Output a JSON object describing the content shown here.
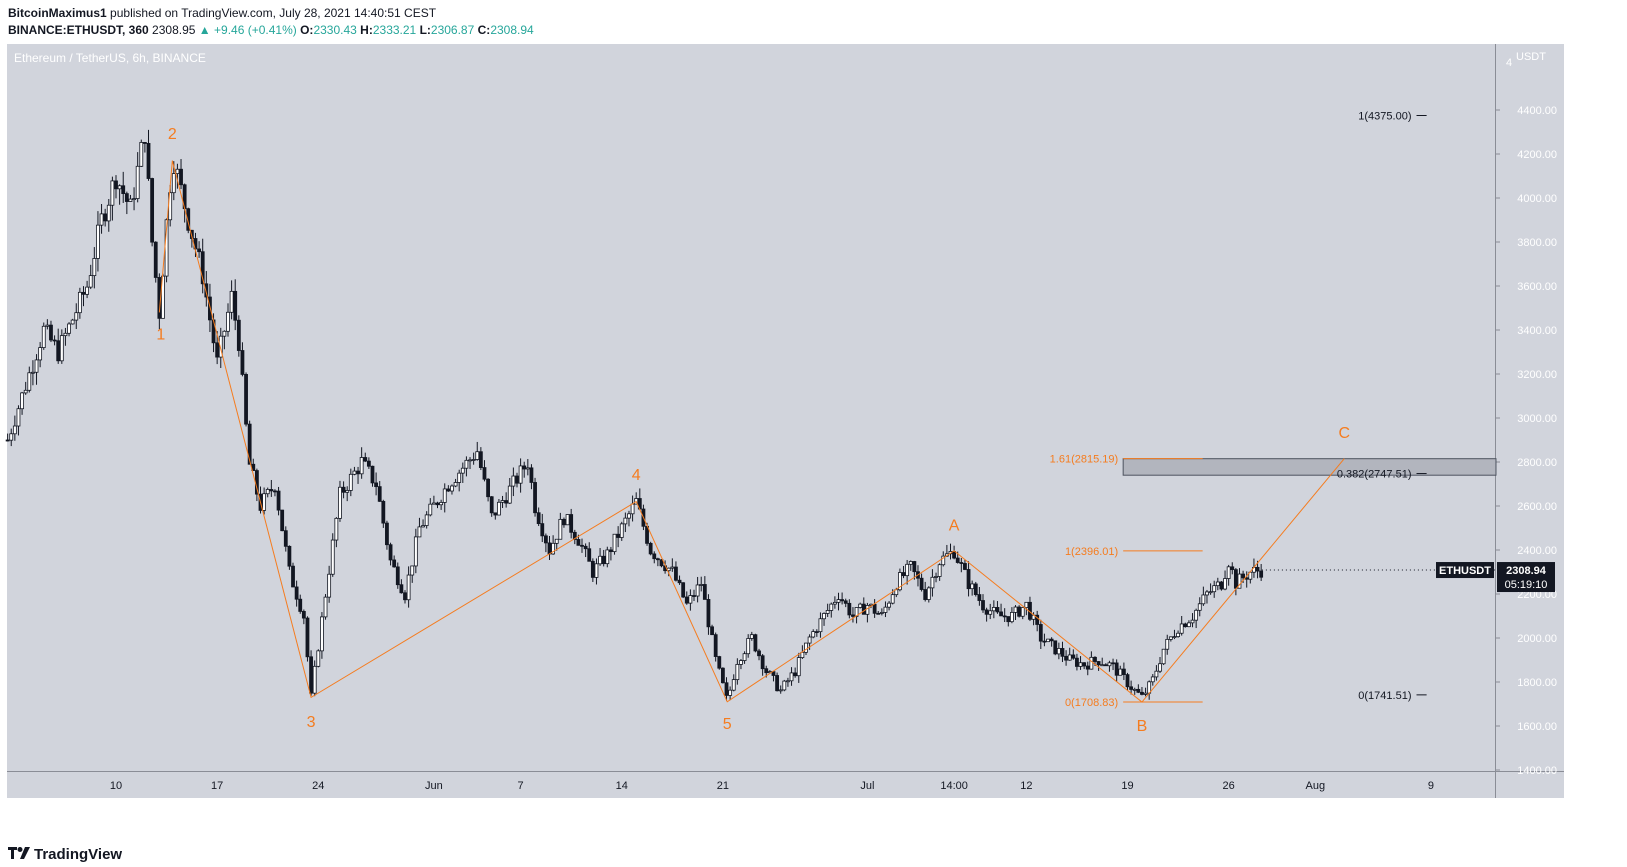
{
  "header": {
    "author": "BitcoinMaximus1",
    "published_text": "published on TradingView.com, July 28, 2021 14:40:51 CEST",
    "symbol": "BINANCE:ETHUSDT, 360",
    "last_price": "2308.95",
    "change": "+9.46 (+0.41%)",
    "open_label": "O:",
    "open": "2330.43",
    "high_label": "H:",
    "high": "2333.21",
    "low_label": "L:",
    "low": "2306.87",
    "close_label": "C:",
    "close": "2308.94"
  },
  "footer": {
    "brand": "TradingView"
  },
  "colors": {
    "background": "#d1d4dc",
    "candle": "#131722",
    "orange": "#f57c1f",
    "text": "#131722",
    "price_tag": "#131722"
  },
  "chart_data": {
    "type": "candlestick",
    "title": "Ethereum / TetherUS, 6h, BINANCE",
    "ylabel": "USDT",
    "ylim": [
      1400,
      4560
    ],
    "y_ticks": [
      1400,
      1600,
      1800,
      2000,
      2200,
      2400,
      2600,
      2800,
      3000,
      3200,
      3400,
      3600,
      3800,
      4000,
      4200,
      4400
    ],
    "y_tick_labels": [
      "1400.00",
      "1600.00",
      "1800.00",
      "2000.00",
      "2200.00",
      "2400.00",
      "2600.00",
      "2800.00",
      "3000.00",
      "3200.00",
      "3400.00",
      "3600.00",
      "3800.00",
      "4000.00",
      "4200.00",
      "4400.00"
    ],
    "y_top_label": "4",
    "x_labels": [
      {
        "day": 10,
        "label": "10"
      },
      {
        "day": 17,
        "label": "17"
      },
      {
        "day": 24,
        "label": "24"
      },
      {
        "day": 32,
        "label": "Jun"
      },
      {
        "day": 38,
        "label": "7"
      },
      {
        "day": 45,
        "label": "14"
      },
      {
        "day": 52,
        "label": "21"
      },
      {
        "day": 62,
        "label": "Jul"
      },
      {
        "day": 68,
        "label": "14:00"
      },
      {
        "day": 73,
        "label": "12"
      },
      {
        "day": 80,
        "label": "19"
      },
      {
        "day": 87,
        "label": "26"
      },
      {
        "day": 93,
        "label": "Aug"
      },
      {
        "day": 101,
        "label": "9"
      }
    ],
    "series": [
      {
        "name": "ETHUSDT",
        "keypoints": [
          {
            "day": 2.5,
            "price": 2900
          },
          {
            "day": 4,
            "price": 3200
          },
          {
            "day": 5,
            "price": 3400
          },
          {
            "day": 6,
            "price": 3300
          },
          {
            "day": 7,
            "price": 3450
          },
          {
            "day": 8,
            "price": 3600
          },
          {
            "day": 9,
            "price": 3900
          },
          {
            "day": 10,
            "price": 4100
          },
          {
            "day": 11,
            "price": 3950
          },
          {
            "day": 12,
            "price": 4300
          },
          {
            "day": 12.5,
            "price": 3800
          },
          {
            "day": 13,
            "price": 3480
          },
          {
            "day": 13.7,
            "price": 4050
          },
          {
            "day": 14,
            "price": 4170
          },
          {
            "day": 15,
            "price": 3900
          },
          {
            "day": 16,
            "price": 3650
          },
          {
            "day": 17,
            "price": 3250
          },
          {
            "day": 18,
            "price": 3550
          },
          {
            "day": 18.5,
            "price": 3350
          },
          {
            "day": 19.2,
            "price": 2800
          },
          {
            "day": 20,
            "price": 2600
          },
          {
            "day": 21,
            "price": 2700
          },
          {
            "day": 22,
            "price": 2300
          },
          {
            "day": 23,
            "price": 2100
          },
          {
            "day": 23.5,
            "price": 1730
          },
          {
            "day": 24.5,
            "price": 2200
          },
          {
            "day": 25.5,
            "price": 2650
          },
          {
            "day": 27,
            "price": 2800
          },
          {
            "day": 28,
            "price": 2700
          },
          {
            "day": 29,
            "price": 2350
          },
          {
            "day": 30,
            "price": 2200
          },
          {
            "day": 31,
            "price": 2500
          },
          {
            "day": 33,
            "price": 2700
          },
          {
            "day": 35,
            "price": 2850
          },
          {
            "day": 36,
            "price": 2550
          },
          {
            "day": 37.5,
            "price": 2700
          },
          {
            "day": 38.5,
            "price": 2800
          },
          {
            "day": 39,
            "price": 2600
          },
          {
            "day": 40,
            "price": 2400
          },
          {
            "day": 41,
            "price": 2550
          },
          {
            "day": 42,
            "price": 2450
          },
          {
            "day": 43,
            "price": 2300
          },
          {
            "day": 44,
            "price": 2380
          },
          {
            "day": 45,
            "price": 2500
          },
          {
            "day": 46,
            "price": 2620
          },
          {
            "day": 47,
            "price": 2400
          },
          {
            "day": 48.5,
            "price": 2300
          },
          {
            "day": 49.5,
            "price": 2150
          },
          {
            "day": 50.5,
            "price": 2250
          },
          {
            "day": 51.5,
            "price": 1900
          },
          {
            "day": 52.3,
            "price": 1710
          },
          {
            "day": 53,
            "price": 1900
          },
          {
            "day": 54,
            "price": 2000
          },
          {
            "day": 55,
            "price": 1850
          },
          {
            "day": 56,
            "price": 1760
          },
          {
            "day": 57,
            "price": 1850
          },
          {
            "day": 58,
            "price": 2000
          },
          {
            "day": 59,
            "price": 2100
          },
          {
            "day": 60,
            "price": 2200
          },
          {
            "day": 61,
            "price": 2100
          },
          {
            "day": 62,
            "price": 2150
          },
          {
            "day": 63,
            "price": 2100
          },
          {
            "day": 64,
            "price": 2250
          },
          {
            "day": 65,
            "price": 2320
          },
          {
            "day": 66,
            "price": 2200
          },
          {
            "day": 67,
            "price": 2350
          },
          {
            "day": 68,
            "price": 2396
          },
          {
            "day": 69,
            "price": 2250
          },
          {
            "day": 70,
            "price": 2150
          },
          {
            "day": 71,
            "price": 2100
          },
          {
            "day": 72,
            "price": 2100
          },
          {
            "day": 73,
            "price": 2150
          },
          {
            "day": 74,
            "price": 2000
          },
          {
            "day": 75,
            "price": 1950
          },
          {
            "day": 76,
            "price": 1900
          },
          {
            "day": 77,
            "price": 1880
          },
          {
            "day": 78,
            "price": 1900
          },
          {
            "day": 79,
            "price": 1870
          },
          {
            "day": 80.5,
            "price": 1760
          },
          {
            "day": 81,
            "price": 1730
          },
          {
            "day": 81.7,
            "price": 1800
          },
          {
            "day": 82.5,
            "price": 1950
          },
          {
            "day": 83.5,
            "price": 2050
          },
          {
            "day": 84.5,
            "price": 2100
          },
          {
            "day": 85.5,
            "price": 2200
          },
          {
            "day": 86.5,
            "price": 2250
          },
          {
            "day": 87,
            "price": 2350
          },
          {
            "day": 87.5,
            "price": 2250
          },
          {
            "day": 88.5,
            "price": 2300
          },
          {
            "day": 89.3,
            "price": 2309
          }
        ]
      }
    ],
    "wave_labels": [
      {
        "text": "1",
        "day": 13.1,
        "price": 3420,
        "pos": "below"
      },
      {
        "text": "2",
        "day": 13.9,
        "price": 4250,
        "pos": "above"
      },
      {
        "text": "3",
        "day": 23.5,
        "price": 1660,
        "pos": "below"
      },
      {
        "text": "4",
        "day": 46.0,
        "price": 2700,
        "pos": "above"
      },
      {
        "text": "5",
        "day": 52.3,
        "price": 1650,
        "pos": "below"
      },
      {
        "text": "A",
        "day": 68.0,
        "price": 2470,
        "pos": "above"
      },
      {
        "text": "B",
        "day": 81.0,
        "price": 1640,
        "pos": "below"
      },
      {
        "text": "C",
        "day": 95.0,
        "price": 2890,
        "pos": "above"
      }
    ],
    "wave_path": [
      {
        "day": 13.0,
        "price": 3480
      },
      {
        "day": 13.9,
        "price": 4170
      },
      {
        "day": 17.5,
        "price": 3250
      },
      {
        "day": 23.5,
        "price": 1730
      },
      {
        "day": 46.0,
        "price": 2620
      },
      {
        "day": 52.3,
        "price": 1710
      },
      {
        "day": 68.0,
        "price": 2396
      },
      {
        "day": 81.0,
        "price": 1709
      },
      {
        "day": 95.0,
        "price": 2815
      }
    ],
    "fib_levels": [
      {
        "label": "1.61(2815.19)",
        "price": 2815.19,
        "color": "orange",
        "x_from": 79.7,
        "x_to": 85.2
      },
      {
        "label": "1(2396.01)",
        "price": 2396.01,
        "color": "orange",
        "x_from": 79.7,
        "x_to": 85.2
      },
      {
        "label": "0(1708.83)",
        "price": 1708.83,
        "color": "orange",
        "x_from": 79.7,
        "x_to": 85.2
      },
      {
        "label": "1(4375.00)",
        "price": 4375.0,
        "color": "dark",
        "x_from": 100,
        "x_to": 100.7
      },
      {
        "label": "0.382(2747.51)",
        "price": 2747.51,
        "color": "dark",
        "x_from": 100,
        "x_to": 100.7
      },
      {
        "label": "0(1741.51)",
        "price": 1741.51,
        "color": "dark",
        "x_from": 100,
        "x_to": 100.7
      }
    ],
    "target_zone": {
      "price_low": 2740,
      "price_high": 2815,
      "day_from": 79.7,
      "day_to": 105.5
    },
    "price_tag": {
      "symbol": "ETHUSDT",
      "price": "2308.94",
      "countdown": "05:19:10",
      "value": 2308.94
    }
  }
}
